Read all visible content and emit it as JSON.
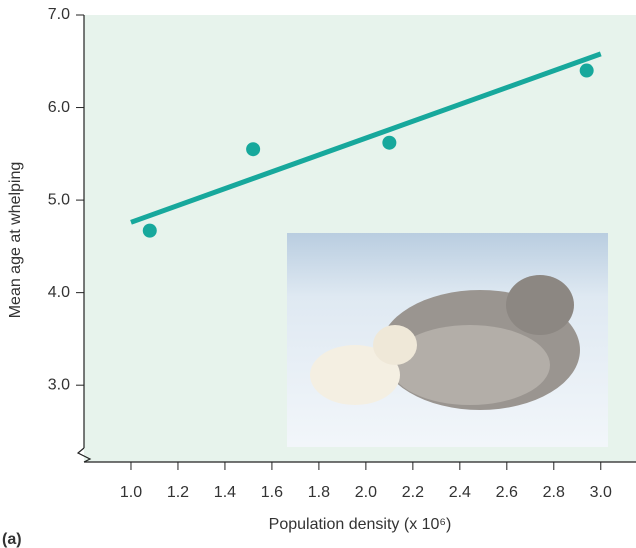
{
  "chart_data": {
    "type": "scatter",
    "xlabel": "Population density (x 10⁶)",
    "ylabel": "Mean age at whelping",
    "panel_label": "(a)",
    "background": "#e7f3ec",
    "xlim": [
      0.8,
      3.15
    ],
    "ylim": [
      2.17,
      7.0
    ],
    "xticks": [
      {
        "value": 1.0,
        "label": "1.0"
      },
      {
        "value": 1.2,
        "label": "1.2"
      },
      {
        "value": 1.4,
        "label": "1.4"
      },
      {
        "value": 1.6,
        "label": "1.6"
      },
      {
        "value": 1.8,
        "label": "1.8"
      },
      {
        "value": 2.0,
        "label": "2.0"
      },
      {
        "value": 2.2,
        "label": "2.2"
      },
      {
        "value": 2.4,
        "label": "2.4"
      },
      {
        "value": 2.6,
        "label": "2.6"
      },
      {
        "value": 2.8,
        "label": "2.8"
      },
      {
        "value": 3.0,
        "label": "3.0"
      }
    ],
    "yticks": [
      {
        "value": 3.0,
        "label": "3.0"
      },
      {
        "value": 4.0,
        "label": "4.0"
      },
      {
        "value": 5.0,
        "label": "5.0"
      },
      {
        "value": 6.0,
        "label": "6.0"
      },
      {
        "value": 7.0,
        "label": "7.0"
      }
    ],
    "series": [
      {
        "type": "scatter",
        "color": "#17a89c",
        "x": [
          1.08,
          1.52,
          2.1,
          2.94
        ],
        "values": [
          4.67,
          5.55,
          5.62,
          6.4
        ]
      },
      {
        "type": "line",
        "color": "#17a89c",
        "x": [
          1.0,
          3.0
        ],
        "values": [
          4.76,
          6.58
        ]
      }
    ]
  }
}
